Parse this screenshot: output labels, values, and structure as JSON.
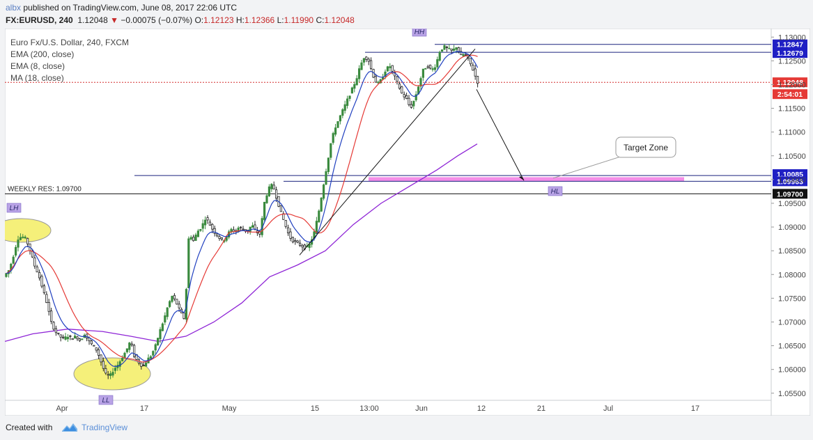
{
  "header": {
    "user": "albx",
    "published": "published on TradingView.com, June 08, 2017 22:06 UTC",
    "symbol": "FX:EURUSD, 240",
    "price": "1.12048",
    "change_arrow": "▼",
    "change": "−0.00075 (−0.07%)",
    "o_label": "O:",
    "o_val": "1.12123",
    "h_label": "H:",
    "h_val": "1.12366",
    "l_label": "L:",
    "l_val": "1.11990",
    "c_label": "C:",
    "c_val": "1.12048"
  },
  "legend": {
    "title": "Euro Fx/U.S. Dollar, 240, FXCM",
    "ind1": "EMA (200, close)",
    "ind2": "EMA (8, close)",
    "ind3": "MA (18, close)"
  },
  "footer": {
    "created": "Created with",
    "brand": "TradingView"
  },
  "colors": {
    "up": "#3a8a3e",
    "down": "#222222",
    "ema8": "#1f3fbf",
    "ma18": "#e53935",
    "ema200": "#8e24d6",
    "target": "#f48ee8",
    "marker": "#b9a3e6",
    "highlight": "#f5f07a"
  },
  "chart_data": {
    "type": "candlestick",
    "title": "Euro Fx/U.S. Dollar, 240, FXCM",
    "x_tick_labels": [
      "Apr",
      "17",
      "May",
      "15",
      "13:00",
      "Jun",
      "12",
      "21",
      "Jul",
      "17"
    ],
    "y_tick_labels": [
      "1.13000",
      "1.12500",
      "1.12000",
      "1.11500",
      "1.11000",
      "1.10500",
      "1.10000",
      "1.09500",
      "1.09000",
      "1.08500",
      "1.08000",
      "1.07500",
      "1.07000",
      "1.06500",
      "1.06000",
      "1.05500"
    ],
    "ylim": [
      1.0535,
      1.1318
    ],
    "current_price": "1.12048",
    "countdown": "2:54:01",
    "price_labels": [
      "1.12847",
      "1.12679",
      "1.10085",
      "1.09963",
      "1.09700"
    ],
    "weekly_res_label": "WEEKLY RES: 1.09700",
    "annotations": {
      "target_zone": "Target Zone",
      "hh": "HH",
      "lh": "LH",
      "ll": "LL",
      "hl": "HL"
    },
    "levels": [
      {
        "name": "top-res",
        "price": 1.12847
      },
      {
        "name": "upper-res",
        "price": 1.12679
      },
      {
        "name": "demand-upper",
        "price": 1.10085
      },
      {
        "name": "demand-lower",
        "price": 1.09963
      },
      {
        "name": "weekly-res",
        "price": 1.097
      }
    ],
    "target_zone_price": [
      1.0996,
      1.1005
    ],
    "price_path": [
      [
        0,
        1.0795
      ],
      [
        8,
        1.081
      ],
      [
        14,
        1.084
      ],
      [
        20,
        1.0875
      ],
      [
        26,
        1.088
      ],
      [
        32,
        1.0875
      ],
      [
        38,
        1.085
      ],
      [
        44,
        1.082
      ],
      [
        50,
        1.08
      ],
      [
        56,
        1.077
      ],
      [
        62,
        1.074
      ],
      [
        68,
        1.07
      ],
      [
        74,
        1.068
      ],
      [
        80,
        1.067
      ],
      [
        86,
        1.0665
      ],
      [
        92,
        1.067
      ],
      [
        98,
        1.0665
      ],
      [
        104,
        1.067
      ],
      [
        110,
        1.066
      ],
      [
        116,
        1.0675
      ],
      [
        122,
        1.066
      ],
      [
        128,
        1.065
      ],
      [
        134,
        1.064
      ],
      [
        140,
        1.0615
      ],
      [
        146,
        1.059
      ],
      [
        152,
        1.0585
      ],
      [
        158,
        1.06
      ],
      [
        164,
        1.061
      ],
      [
        170,
        1.0625
      ],
      [
        176,
        1.064
      ],
      [
        182,
        1.066
      ],
      [
        188,
        1.0625
      ],
      [
        194,
        1.0615
      ],
      [
        200,
        1.0605
      ],
      [
        206,
        1.062
      ],
      [
        212,
        1.063
      ],
      [
        218,
        1.065
      ],
      [
        224,
        1.068
      ],
      [
        230,
        1.0705
      ],
      [
        236,
        1.0735
      ],
      [
        242,
        1.0755
      ],
      [
        248,
        1.074
      ],
      [
        254,
        1.072
      ],
      [
        260,
        1.0705
      ],
      [
        266,
        1.089
      ],
      [
        272,
        1.087
      ],
      [
        278,
        1.089
      ],
      [
        284,
        1.09
      ],
      [
        290,
        1.092
      ],
      [
        296,
        1.0905
      ],
      [
        302,
        1.089
      ],
      [
        308,
        1.088
      ],
      [
        314,
        1.087
      ],
      [
        320,
        1.088
      ],
      [
        326,
        1.0895
      ],
      [
        332,
        1.089
      ],
      [
        338,
        1.09
      ],
      [
        344,
        1.0895
      ],
      [
        350,
        1.089
      ],
      [
        356,
        1.0905
      ],
      [
        362,
        1.089
      ],
      [
        368,
        1.0885
      ],
      [
        374,
        1.095
      ],
      [
        380,
        1.098
      ],
      [
        386,
        1.099
      ],
      [
        392,
        1.096
      ],
      [
        398,
        1.093
      ],
      [
        404,
        1.0905
      ],
      [
        410,
        1.088
      ],
      [
        416,
        1.087
      ],
      [
        422,
        1.0865
      ],
      [
        428,
        1.086
      ],
      [
        434,
        1.0855
      ],
      [
        440,
        1.0865
      ],
      [
        446,
        1.089
      ],
      [
        452,
        1.093
      ],
      [
        458,
        1.098
      ],
      [
        464,
        1.103
      ],
      [
        470,
        1.108
      ],
      [
        476,
        1.111
      ],
      [
        482,
        1.113
      ],
      [
        488,
        1.115
      ],
      [
        494,
        1.117
      ],
      [
        500,
        1.119
      ],
      [
        506,
        1.121
      ],
      [
        512,
        1.124
      ],
      [
        518,
        1.126
      ],
      [
        524,
        1.125
      ],
      [
        530,
        1.122
      ],
      [
        536,
        1.12
      ],
      [
        542,
        1.121
      ],
      [
        548,
        1.123
      ],
      [
        554,
        1.124
      ],
      [
        560,
        1.122
      ],
      [
        566,
        1.12
      ],
      [
        572,
        1.118
      ],
      [
        578,
        1.117
      ],
      [
        584,
        1.115
      ],
      [
        590,
        1.117
      ],
      [
        596,
        1.12
      ],
      [
        602,
        1.123
      ],
      [
        608,
        1.124
      ],
      [
        614,
        1.123
      ],
      [
        620,
        1.124
      ],
      [
        626,
        1.127
      ],
      [
        632,
        1.128
      ],
      [
        638,
        1.1275
      ],
      [
        644,
        1.127
      ],
      [
        650,
        1.128
      ],
      [
        656,
        1.126
      ],
      [
        662,
        1.1265
      ],
      [
        668,
        1.125
      ],
      [
        674,
        1.123
      ],
      [
        680,
        1.1205
      ]
    ],
    "ema200_path": [
      [
        0,
        1.0659
      ],
      [
        40,
        1.0675
      ],
      [
        90,
        1.0685
      ],
      [
        140,
        1.068
      ],
      [
        180,
        1.067
      ],
      [
        220,
        1.0659
      ],
      [
        260,
        1.067
      ],
      [
        300,
        1.07
      ],
      [
        340,
        1.074
      ],
      [
        380,
        1.0795
      ],
      [
        420,
        1.082
      ],
      [
        460,
        1.085
      ],
      [
        500,
        1.0905
      ],
      [
        540,
        1.095
      ],
      [
        580,
        1.0985
      ],
      [
        620,
        1.102
      ],
      [
        650,
        1.105
      ],
      [
        678,
        1.1075
      ]
    ]
  }
}
